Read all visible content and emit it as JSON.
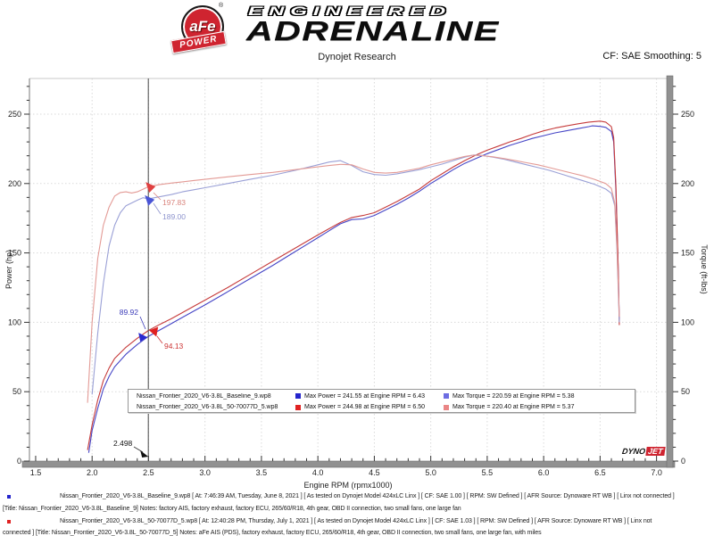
{
  "header": {
    "logo": {
      "circle_text": "aFe",
      "registered": "®",
      "banner_text": "POWER",
      "line1": "ENGINEERED",
      "line2": "ADRENALINE"
    },
    "subtitle": "Dynojet Research",
    "smoothing_label": "CF: SAE Smoothing: 5"
  },
  "chart_data": {
    "type": "line",
    "xlabel": "Engine RPM (rpmx1000)",
    "ylabel_left": "Power (hp)",
    "ylabel_right": "Torque (ft-lbs)",
    "x_ticks": [
      1.5,
      2.0,
      2.5,
      3.0,
      3.5,
      4.0,
      4.5,
      5.0,
      5.5,
      6.0,
      6.5,
      7.0
    ],
    "y_ticks": [
      0,
      50,
      100,
      150,
      200,
      250
    ],
    "xlim": [
      1.445,
      7.09
    ],
    "ylim": [
      0,
      275.7
    ],
    "grid": true,
    "legend_position": "bottom-center-inside",
    "cursor": {
      "rpm": 2.498,
      "label": "2.498"
    },
    "watermark": {
      "part1": "DYNO",
      "part2": "JET"
    },
    "series": [
      {
        "name": "power_baseline",
        "label": "Baseline Power (hp)",
        "color": "#4545c6",
        "points": [
          [
            1.97,
            6
          ],
          [
            2.0,
            22
          ],
          [
            2.05,
            38
          ],
          [
            2.1,
            52
          ],
          [
            2.15,
            61
          ],
          [
            2.2,
            68
          ],
          [
            2.3,
            77
          ],
          [
            2.4,
            84
          ],
          [
            2.5,
            89.92
          ],
          [
            2.6,
            94.5
          ],
          [
            2.7,
            99
          ],
          [
            2.8,
            103.5
          ],
          [
            2.9,
            108
          ],
          [
            3.0,
            112.5
          ],
          [
            3.2,
            122
          ],
          [
            3.4,
            131.5
          ],
          [
            3.6,
            141
          ],
          [
            3.8,
            151
          ],
          [
            3.9,
            156
          ],
          [
            4.0,
            161
          ],
          [
            4.1,
            166
          ],
          [
            4.2,
            171
          ],
          [
            4.3,
            174
          ],
          [
            4.4,
            174.5
          ],
          [
            4.5,
            177
          ],
          [
            4.6,
            181
          ],
          [
            4.7,
            185
          ],
          [
            4.8,
            189.5
          ],
          [
            4.9,
            194.5
          ],
          [
            5.0,
            200
          ],
          [
            5.1,
            205
          ],
          [
            5.2,
            210
          ],
          [
            5.3,
            214.5
          ],
          [
            5.4,
            218
          ],
          [
            5.5,
            221.5
          ],
          [
            5.6,
            224.5
          ],
          [
            5.7,
            227.5
          ],
          [
            5.8,
            230
          ],
          [
            5.9,
            232.5
          ],
          [
            6.0,
            234.5
          ],
          [
            6.1,
            236.5
          ],
          [
            6.2,
            238
          ],
          [
            6.3,
            239.5
          ],
          [
            6.4,
            241
          ],
          [
            6.43,
            241.55
          ],
          [
            6.5,
            241.2
          ],
          [
            6.55,
            240.5
          ],
          [
            6.6,
            237.5
          ],
          [
            6.62,
            230
          ],
          [
            6.64,
            195
          ],
          [
            6.66,
            140
          ],
          [
            6.67,
            102
          ]
        ]
      },
      {
        "name": "power_afe",
        "label": "aFe 50-70077D Power (hp)",
        "color": "#c63b3b",
        "points": [
          [
            1.96,
            8
          ],
          [
            2.0,
            26
          ],
          [
            2.05,
            44
          ],
          [
            2.1,
            58
          ],
          [
            2.15,
            67
          ],
          [
            2.2,
            74
          ],
          [
            2.3,
            82
          ],
          [
            2.4,
            88.5
          ],
          [
            2.5,
            94.13
          ],
          [
            2.6,
            98.5
          ],
          [
            2.7,
            102.5
          ],
          [
            2.8,
            107
          ],
          [
            2.9,
            111.5
          ],
          [
            3.0,
            116
          ],
          [
            3.2,
            125
          ],
          [
            3.4,
            134.5
          ],
          [
            3.6,
            144
          ],
          [
            3.8,
            153.5
          ],
          [
            4.0,
            163
          ],
          [
            4.1,
            167.5
          ],
          [
            4.2,
            172
          ],
          [
            4.3,
            175.5
          ],
          [
            4.4,
            177
          ],
          [
            4.5,
            179
          ],
          [
            4.6,
            183
          ],
          [
            4.7,
            187
          ],
          [
            4.8,
            191.5
          ],
          [
            4.9,
            196
          ],
          [
            5.0,
            202
          ],
          [
            5.1,
            207
          ],
          [
            5.2,
            212
          ],
          [
            5.3,
            216.5
          ],
          [
            5.4,
            220.5
          ],
          [
            5.5,
            224
          ],
          [
            5.6,
            227
          ],
          [
            5.7,
            230
          ],
          [
            5.8,
            232.5
          ],
          [
            5.9,
            235.5
          ],
          [
            6.0,
            238
          ],
          [
            6.1,
            240
          ],
          [
            6.2,
            241.5
          ],
          [
            6.3,
            243
          ],
          [
            6.4,
            244.3
          ],
          [
            6.5,
            244.98
          ],
          [
            6.55,
            244.3
          ],
          [
            6.6,
            241
          ],
          [
            6.62,
            233
          ],
          [
            6.64,
            198
          ],
          [
            6.66,
            142
          ],
          [
            6.67,
            98
          ]
        ]
      },
      {
        "name": "torque_baseline",
        "label": "Baseline Torque (ft-lbs)",
        "color": "#9aa0d6",
        "points": [
          [
            2.0,
            48
          ],
          [
            2.05,
            92
          ],
          [
            2.1,
            128
          ],
          [
            2.15,
            155
          ],
          [
            2.2,
            170
          ],
          [
            2.25,
            179
          ],
          [
            2.3,
            184
          ],
          [
            2.4,
            188
          ],
          [
            2.45,
            189.8
          ],
          [
            2.5,
            189.0
          ],
          [
            2.6,
            190.5
          ],
          [
            2.7,
            192
          ],
          [
            2.8,
            194
          ],
          [
            2.9,
            195.5
          ],
          [
            3.0,
            197
          ],
          [
            3.2,
            200
          ],
          [
            3.4,
            203
          ],
          [
            3.6,
            206
          ],
          [
            3.8,
            209.5
          ],
          [
            3.9,
            211.5
          ],
          [
            4.0,
            213.5
          ],
          [
            4.1,
            215.5
          ],
          [
            4.2,
            216.5
          ],
          [
            4.3,
            213
          ],
          [
            4.4,
            208.5
          ],
          [
            4.5,
            206.5
          ],
          [
            4.6,
            206
          ],
          [
            4.7,
            207
          ],
          [
            4.8,
            208.5
          ],
          [
            4.9,
            210
          ],
          [
            5.0,
            212
          ],
          [
            5.1,
            214
          ],
          [
            5.2,
            216.5
          ],
          [
            5.3,
            219
          ],
          [
            5.38,
            220.59
          ],
          [
            5.45,
            220.3
          ],
          [
            5.55,
            219
          ],
          [
            5.65,
            217.5
          ],
          [
            5.75,
            215.5
          ],
          [
            5.85,
            213.5
          ],
          [
            5.95,
            211.5
          ],
          [
            6.05,
            209.5
          ],
          [
            6.15,
            207
          ],
          [
            6.25,
            204.5
          ],
          [
            6.35,
            202
          ],
          [
            6.45,
            199.5
          ],
          [
            6.55,
            196
          ],
          [
            6.6,
            193
          ],
          [
            6.63,
            184
          ],
          [
            6.65,
            152
          ],
          [
            6.67,
            100
          ]
        ]
      },
      {
        "name": "torque_afe",
        "label": "aFe 50-70077D Torque (ft-lbs)",
        "color": "#e39a95",
        "points": [
          [
            1.96,
            42
          ],
          [
            2.0,
            100
          ],
          [
            2.05,
            146
          ],
          [
            2.1,
            170
          ],
          [
            2.15,
            183
          ],
          [
            2.2,
            191
          ],
          [
            2.25,
            193.5
          ],
          [
            2.3,
            194
          ],
          [
            2.35,
            193.2
          ],
          [
            2.4,
            194
          ],
          [
            2.45,
            195.8
          ],
          [
            2.5,
            197.83
          ],
          [
            2.6,
            199.3
          ],
          [
            2.7,
            200.3
          ],
          [
            2.8,
            201.2
          ],
          [
            2.9,
            202.2
          ],
          [
            3.0,
            203
          ],
          [
            3.2,
            204.8
          ],
          [
            3.4,
            206.5
          ],
          [
            3.6,
            208
          ],
          [
            3.8,
            210
          ],
          [
            4.0,
            212
          ],
          [
            4.1,
            213
          ],
          [
            4.2,
            213.8
          ],
          [
            4.3,
            213.5
          ],
          [
            4.4,
            210.5
          ],
          [
            4.5,
            208
          ],
          [
            4.6,
            207.5
          ],
          [
            4.7,
            208
          ],
          [
            4.8,
            209.5
          ],
          [
            4.9,
            211
          ],
          [
            5.0,
            213.5
          ],
          [
            5.1,
            215.5
          ],
          [
            5.2,
            217.5
          ],
          [
            5.3,
            219.5
          ],
          [
            5.37,
            220.4
          ],
          [
            5.45,
            220.1
          ],
          [
            5.55,
            219.3
          ],
          [
            5.65,
            218
          ],
          [
            5.75,
            216.5
          ],
          [
            5.85,
            215
          ],
          [
            5.95,
            213.5
          ],
          [
            6.05,
            211.5
          ],
          [
            6.15,
            209.5
          ],
          [
            6.25,
            207.5
          ],
          [
            6.35,
            205.5
          ],
          [
            6.45,
            203
          ],
          [
            6.55,
            200
          ],
          [
            6.6,
            196.5
          ],
          [
            6.63,
            186
          ],
          [
            6.65,
            155
          ],
          [
            6.67,
            104
          ]
        ]
      }
    ],
    "annotations": [
      {
        "text": "197.83",
        "series": "torque_afe",
        "value": 197.83,
        "text_color": "#d9837c",
        "marker_color": "#e04040"
      },
      {
        "text": "189.00",
        "series": "torque_baseline",
        "value": 189.0,
        "text_color": "#8d93cd",
        "marker_color": "#4a55d6"
      },
      {
        "text": "89.92",
        "series": "power_baseline",
        "value": 89.92,
        "text_color": "#3a3ab8",
        "marker_color": "#2a2ad0"
      },
      {
        "text": "94.13",
        "series": "power_afe",
        "value": 94.13,
        "text_color": "#cc3434",
        "marker_color": "#e02020"
      }
    ]
  },
  "legend": {
    "rows": [
      {
        "file": "Nissan_Frontier_2020_V6-3.8L_Baseline_9.wp8",
        "power_color": "#2424cc",
        "power_text": "Max Power = 241.55 at Engine RPM = 6.43",
        "torque_color": "#6d6de2",
        "torque_text": "Max Torque = 220.59 at Engine RPM = 5.38"
      },
      {
        "file": "Nissan_Frontier_2020_V6-3.8L_50-70077D_5.wp8",
        "power_color": "#e02222",
        "power_text": "Max Power = 244.98 at Engine RPM = 6.50",
        "torque_color": "#ea8585",
        "torque_text": "Max Torque = 220.40 at Engine RPM = 5.37"
      }
    ]
  },
  "footer": {
    "lines": [
      {
        "bullet": "#2424cc",
        "text": "Nissan_Frontier_2020_V6-3.8L_Baseline_9.wp8 [ At: 7:46:39 AM, Tuesday, June 8, 2021 ] [ As tested on Dynojet Model 424xLC Linx ] [ CF: SAE 1.00 ] [ RPM: SW Defined ] [ AFR Source: Dynoware RT WB ] [ Linx not connected ]"
      },
      {
        "bullet": "",
        "text": "[Title: Nissan_Frontier_2020_V6-3.8L_Baseline_9]  Notes: factory AIS, factory exhaust, factory ECU, 265/60/R18, 4th gear, OBD II connection, two small fans, one large fan"
      },
      {
        "bullet": "#e02222",
        "text": "Nissan_Frontier_2020_V6-3.8L_50-70077D_5.wp8 [ At: 12:40:28 PM, Thursday, July 1, 2021 ] [ As tested on Dynojet Model 424xLC Linx ] [ CF: SAE 1.03 ] [ RPM: SW Defined ] [ AFR Source: Dynoware RT WB ] [ Linx not"
      },
      {
        "bullet": "",
        "text": "connected ] [Title: Nissan_Frontier_2020_V6-3.8L_50-70077D_5]  Notes: aFe AIS (PDS), factory exhaust, factory ECU, 265/60/R18, 4th gear, OBD II connection, two small fans, one large fan, with miles"
      }
    ]
  }
}
